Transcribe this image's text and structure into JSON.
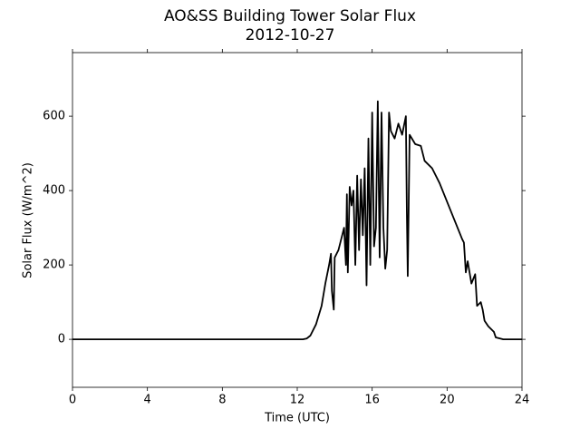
{
  "chart_data": {
    "type": "line",
    "title": "AO&SS Building Tower Solar Flux",
    "subtitle": "2012-10-27",
    "x_label": "Time (UTC)",
    "y_label": "Solar Flux (W/m^2)",
    "x": [
      0,
      12.3,
      12.5,
      12.7,
      13.0,
      13.3,
      13.5,
      13.7,
      13.8,
      13.85,
      13.95,
      14.0,
      14.2,
      14.4,
      14.5,
      14.6,
      14.65,
      14.7,
      14.8,
      14.9,
      15.0,
      15.1,
      15.2,
      15.3,
      15.4,
      15.5,
      15.6,
      15.7,
      15.8,
      15.9,
      16.0,
      16.1,
      16.2,
      16.3,
      16.4,
      16.5,
      16.6,
      16.7,
      16.8,
      16.9,
      17.0,
      17.2,
      17.4,
      17.6,
      17.8,
      17.85,
      17.9,
      18.0,
      18.3,
      18.6,
      18.8,
      19.2,
      19.6,
      20.0,
      20.4,
      20.8,
      20.9,
      21.0,
      21.1,
      21.3,
      21.5,
      21.6,
      21.8,
      21.9,
      22.0,
      22.2,
      22.5,
      22.6,
      23.0,
      24
    ],
    "series": [
      {
        "name": "Solar Flux",
        "color": "#000000",
        "values": [
          0,
          0,
          2,
          10,
          40,
          90,
          150,
          200,
          230,
          130,
          80,
          220,
          240,
          280,
          300,
          200,
          390,
          180,
          410,
          360,
          400,
          200,
          440,
          240,
          430,
          280,
          460,
          145,
          540,
          200,
          610,
          250,
          300,
          640,
          220,
          610,
          300,
          190,
          240,
          610,
          560,
          540,
          580,
          550,
          600,
          350,
          170,
          550,
          525,
          520,
          480,
          460,
          420,
          370,
          320,
          270,
          260,
          180,
          210,
          150,
          175,
          90,
          100,
          80,
          50,
          35,
          20,
          5,
          0,
          0
        ]
      }
    ],
    "xlim": [
      0,
      24
    ],
    "xticks": [
      0,
      4,
      8,
      12,
      16,
      20,
      24
    ],
    "ylim": [
      -129,
      771
    ],
    "yticks": [
      0,
      200,
      400,
      600
    ],
    "grid": false
  }
}
